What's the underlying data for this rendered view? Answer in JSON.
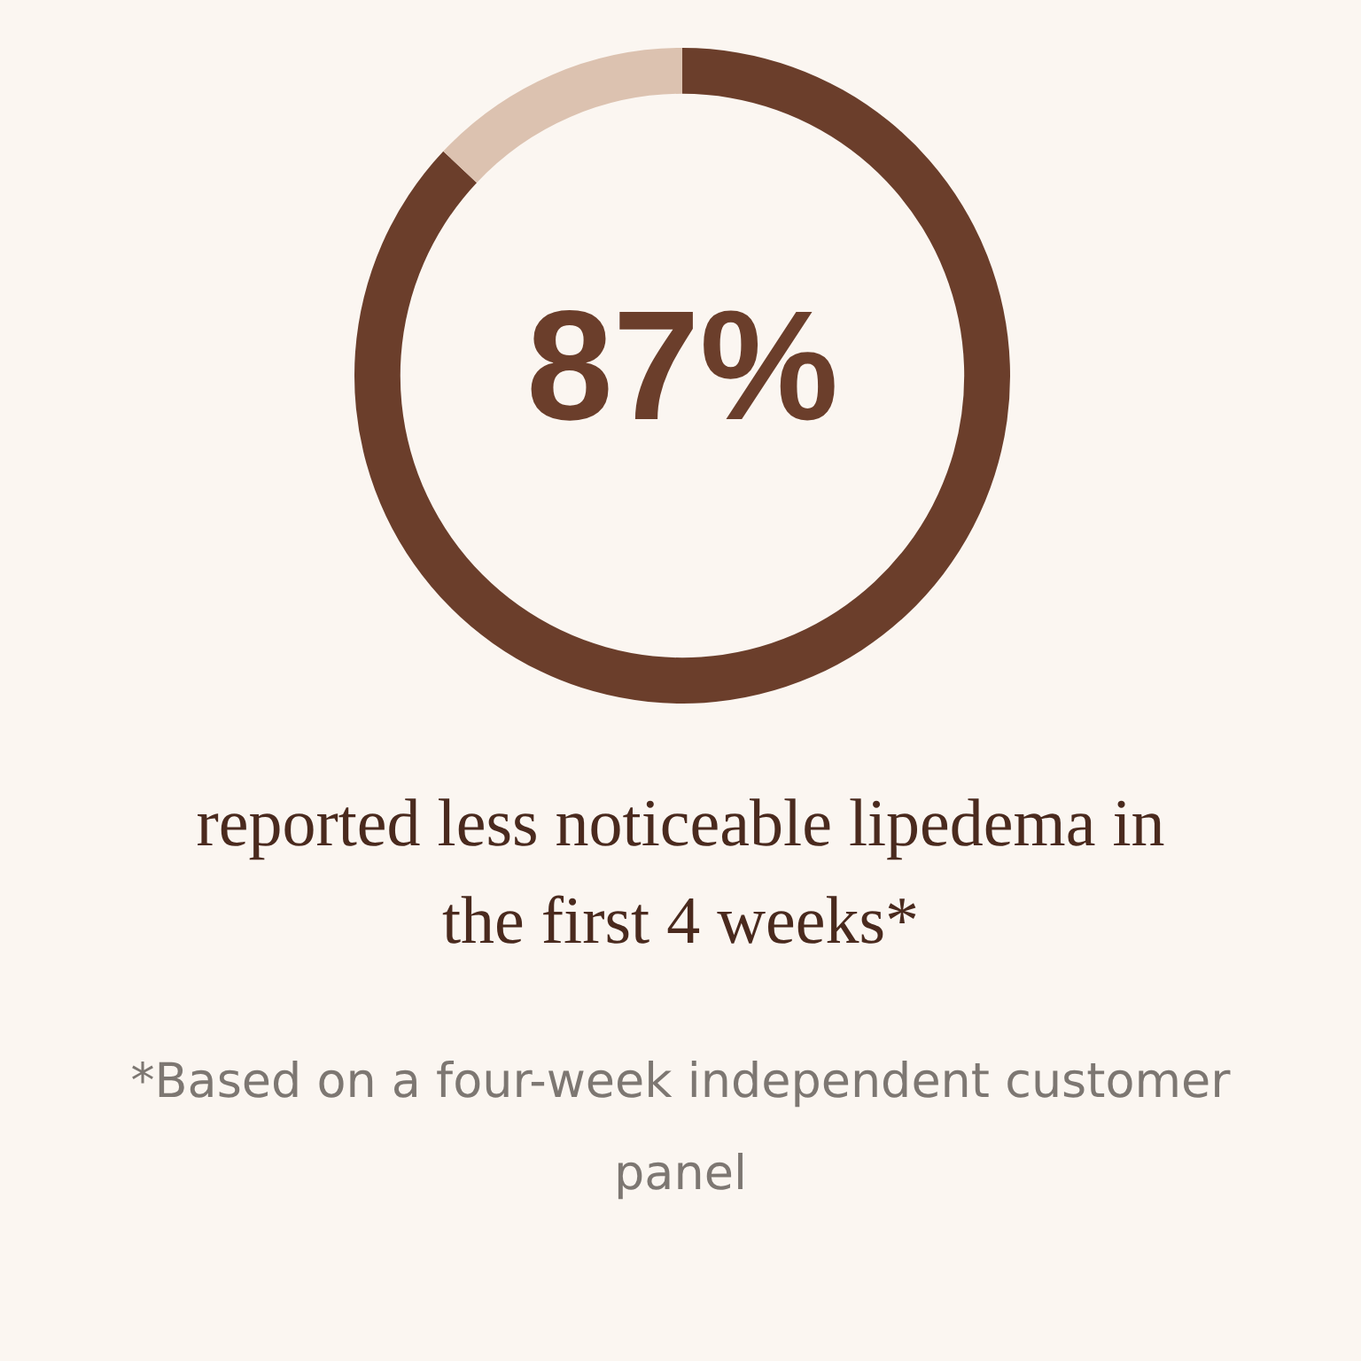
{
  "chart_data": {
    "type": "donut",
    "categories": [
      null,
      null
    ],
    "values": [
      87,
      13
    ],
    "colors": [
      "#6b3e2b",
      "#dcc2b0"
    ],
    "value_labels": [
      "87%",
      null
    ],
    "subtitle": "reported less noticeable lipedema in the first 4 weeks*",
    "annotations": [
      "*Based on a four-week independent customer panel"
    ]
  }
}
